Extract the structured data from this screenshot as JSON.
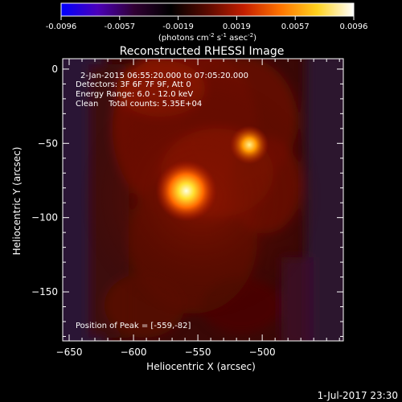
{
  "chart_data": {
    "type": "heatmap",
    "title": "Reconstructed RHESSI Image",
    "xlabel": "Heliocentric X (arcsec)",
    "ylabel": "Heliocentric Y (arcsec)",
    "xlim": [
      -655,
      -437
    ],
    "ylim": [
      -183,
      7
    ],
    "xticks": [
      -650,
      -600,
      -550,
      -500
    ],
    "yticks": [
      0,
      -50,
      -100,
      -150
    ],
    "colorbar": {
      "ticks": [
        "-0.0096",
        "-0.0057",
        "-0.0019",
        "0.0019",
        "0.0057",
        "0.0096"
      ],
      "range": [
        -0.0096,
        0.0096
      ],
      "unit_prefix": "(photons cm",
      "unit_exp1": "-2",
      "unit_mid1": " s",
      "unit_exp2": "-1",
      "unit_mid2": " asec",
      "unit_exp3": "-2",
      "unit_suffix": ")"
    },
    "sources": [
      {
        "x": -559,
        "y": -82,
        "peak": 0.0096
      },
      {
        "x": -510,
        "y": -51,
        "peak": 0.0062
      }
    ],
    "annotations": [
      "2-Jan-2015 06:55:20.000 to 07:05:20.000",
      "Detectors: 3F 6F 7F 9F, Att 0",
      "Energy Range: 6.0 - 12.0 keV",
      "Clean    Total counts: 5.35E+04"
    ],
    "peak_text": "Position of Peak = [-559,-82]",
    "timestamp": "1-Jul-2017 23:30",
    "grid": false,
    "colors": {
      "background": "#000000",
      "colormap": [
        "#0000ff",
        "#4b00b8",
        "#300033",
        "#000000",
        "#5a0a00",
        "#c41e00",
        "#ff7400",
        "#ffd21e",
        "#ffffff"
      ]
    }
  }
}
